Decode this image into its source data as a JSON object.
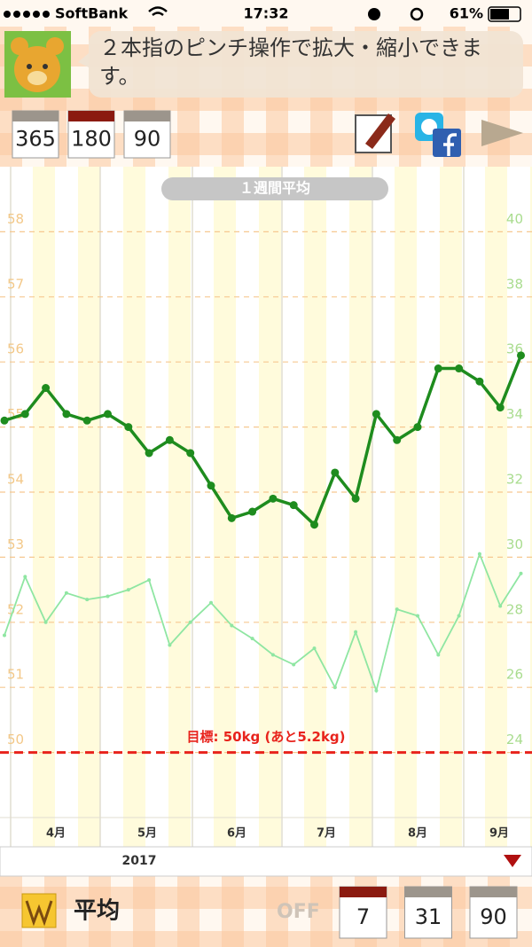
{
  "status_bar": {
    "carrier": "SoftBank",
    "time": "17:32",
    "battery": "61%"
  },
  "hint": "２本指のピンチ操作で拡大・縮小できます。",
  "range_buttons": [
    365,
    180,
    90
  ],
  "chart": {
    "type": "line",
    "title": "１週間平均",
    "months": [
      "4月",
      "5月",
      "6月",
      "7月",
      "8月",
      "9月"
    ],
    "year": "2017",
    "ylim": [
      49,
      59
    ],
    "yticks": [
      50,
      51,
      52,
      53,
      54,
      55,
      56,
      57,
      58
    ],
    "y2lim": [
      22,
      42
    ],
    "y2ticks": [
      24,
      26,
      28,
      30,
      32,
      34,
      36,
      38,
      40
    ],
    "grid": true,
    "series": [
      {
        "color": "#1e8c1e",
        "values": [
          55.1,
          55.2,
          55.6,
          55.2,
          55.1,
          55.2,
          55.0,
          54.6,
          54.8,
          54.6,
          54.1,
          53.6,
          53.7,
          53.9,
          53.8,
          53.5,
          54.3,
          53.9,
          55.2,
          54.8,
          55.0,
          55.9,
          55.9,
          55.7,
          55.3,
          56.1
        ]
      },
      {
        "color": "#8fe6a2",
        "axis": "y2",
        "values": [
          27.6,
          29.4,
          28.0,
          28.9,
          28.7,
          28.8,
          29.0,
          29.3,
          27.3,
          28.0,
          28.6,
          27.9,
          27.5,
          27.0,
          26.7,
          27.2,
          26.0,
          27.7,
          25.9,
          28.4,
          28.2,
          27.0,
          28.2,
          30.1,
          28.5,
          29.5
        ]
      }
    ],
    "target": {
      "value": 50,
      "label": "目標: 50kg (あと5.2kg)",
      "color": "#e8231c"
    }
  },
  "bottom_bar": {
    "label": "平均",
    "toggle": "OFF",
    "buttons": [
      7,
      31,
      90
    ]
  }
}
